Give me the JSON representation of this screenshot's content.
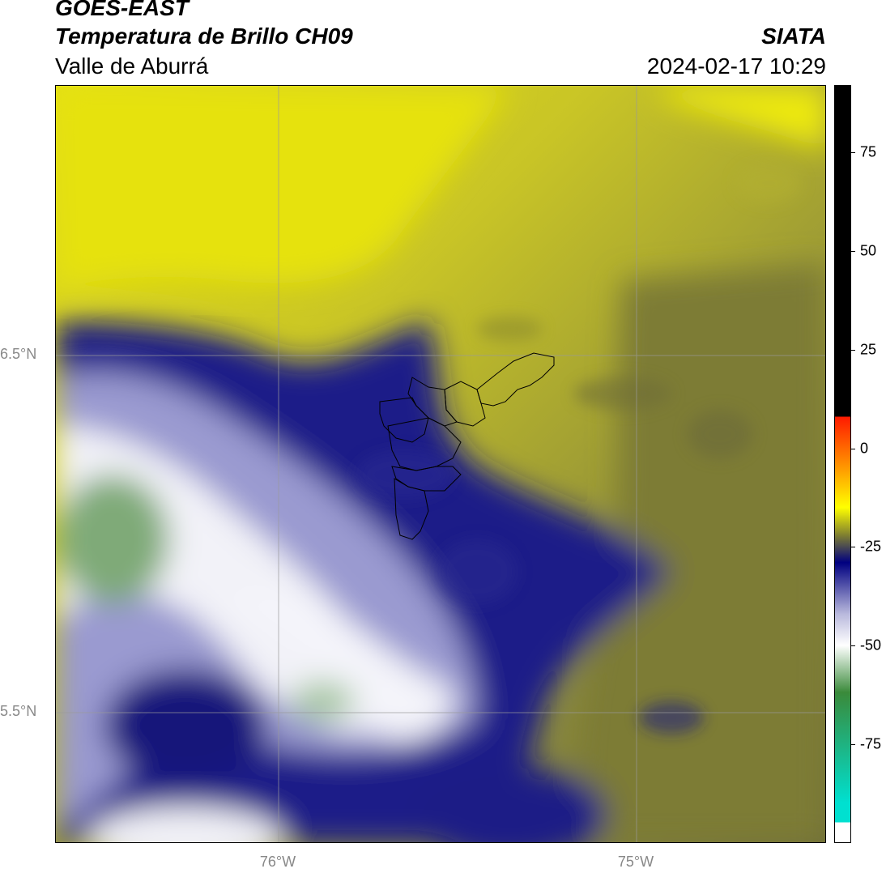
{
  "header": {
    "satellite": "GOES-EAST",
    "product": "Temperatura de Brillo CH09",
    "region": "Valle de Aburrá",
    "brand": "SIATA",
    "timestamp": "2024-02-17 10:29"
  },
  "map": {
    "lon_range": [
      -76.62,
      -74.47
    ],
    "lat_range": [
      5.28,
      7.25
    ],
    "lat_ticks": [
      {
        "value": 6.5,
        "label": "6.5°N"
      },
      {
        "value": 5.5,
        "label": "5.5°N"
      }
    ],
    "lon_ticks": [
      {
        "value": -76.0,
        "label": "76°W"
      },
      {
        "value": -75.0,
        "label": "75°W"
      }
    ],
    "gridlines": true,
    "overlay": "municipality-boundaries"
  },
  "colorbar": {
    "range": [
      -100,
      92
    ],
    "ticks": [
      {
        "value": 75,
        "label": "75"
      },
      {
        "value": 50,
        "label": "50"
      },
      {
        "value": 25,
        "label": "25"
      },
      {
        "value": 0,
        "label": "0"
      },
      {
        "value": -25,
        "label": "-25"
      },
      {
        "value": -50,
        "label": "-50"
      },
      {
        "value": -75,
        "label": "-75"
      }
    ],
    "colors": {
      "black": "#000000",
      "red": "#ff1a00",
      "orange": "#ff9900",
      "yellow": "#ffff00",
      "olive": "#808030",
      "navy": "#000080",
      "lavender": "#b8b8dc",
      "white": "#ffffff",
      "green": "#3a8a3a",
      "teal": "#00e0d0"
    }
  }
}
